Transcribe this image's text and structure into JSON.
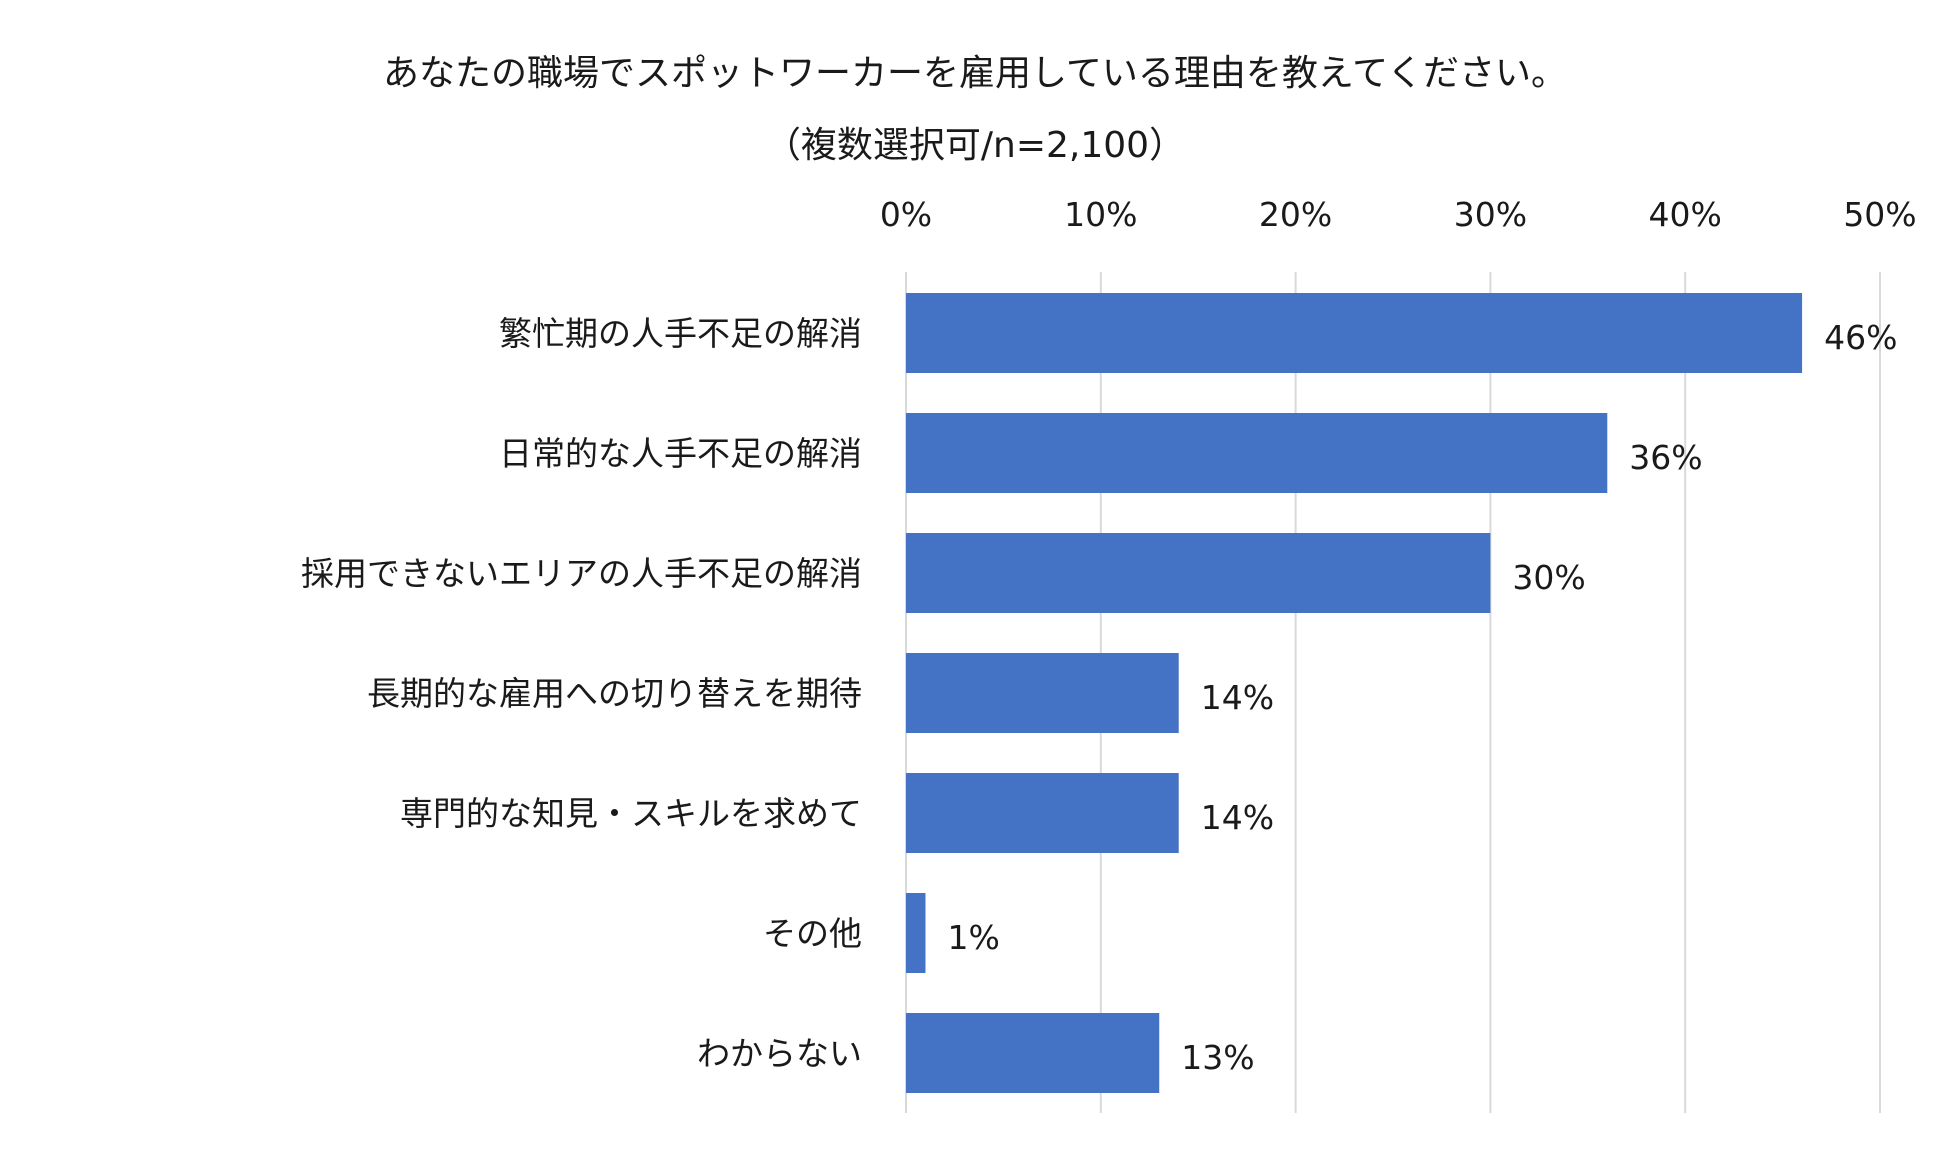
{
  "chart_data": {
    "type": "bar",
    "orientation": "horizontal",
    "title": "あなたの職場でスポットワーカーを雇用している理由を教えてください。",
    "subtitle": "（複数選択可/n=2,100）",
    "categories": [
      "繁忙期の人手不足の解消",
      "日常的な人手不足の解消",
      "採用できないエリアの人手不足の解消",
      "長期的な雇用への切り替えを期待",
      "専門的な知見・スキルを求めて",
      "その他",
      "わからない"
    ],
    "values": [
      46,
      36,
      30,
      14,
      14,
      1,
      13
    ],
    "value_labels": [
      "46%",
      "36%",
      "30%",
      "14%",
      "14%",
      "1%",
      "13%"
    ],
    "xlim": [
      0,
      50
    ],
    "xticks": [
      0,
      10,
      20,
      30,
      40,
      50
    ],
    "xtick_labels": [
      "0%",
      "10%",
      "20%",
      "30%",
      "40%",
      "50%"
    ],
    "xaxis_position": "top",
    "grid": "vertical",
    "legend": "none",
    "colors": {
      "bar": "#4472C4",
      "grid": "#d9d9d9",
      "text": "#1a1a1a"
    }
  }
}
